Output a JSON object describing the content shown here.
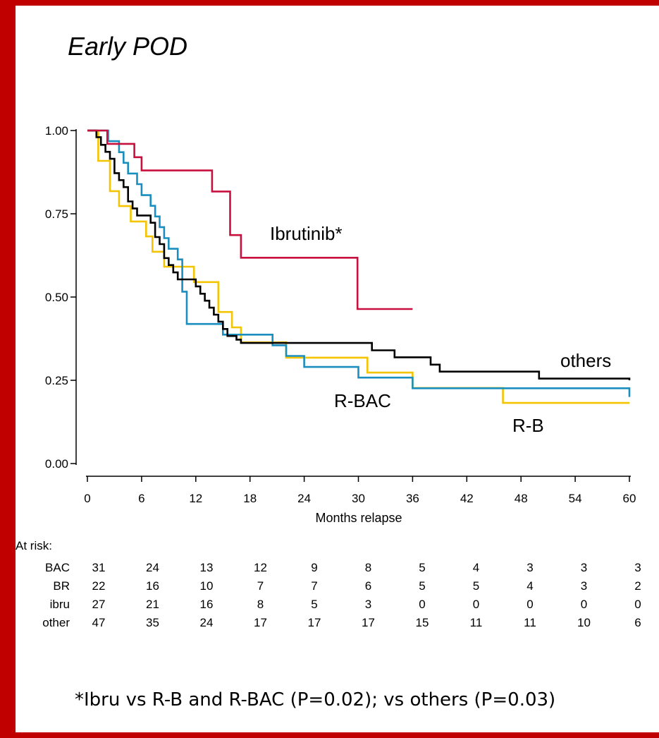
{
  "title": "Early POD",
  "colors": {
    "frame": "#c00000",
    "ibrutinib": "#c8103e",
    "bac": "#1a8fbf",
    "br": "#f5c400",
    "others": "#000000"
  },
  "chart_data": {
    "type": "line",
    "step": true,
    "xlabel": "Months relapse",
    "ylabel": "",
    "xlim": [
      0,
      60
    ],
    "ylim": [
      0,
      1
    ],
    "xticks": [
      0,
      6,
      12,
      18,
      24,
      30,
      36,
      42,
      48,
      54,
      60
    ],
    "xtick_labels": [
      "0",
      "6",
      "12",
      "18",
      "24",
      "30",
      "36",
      "42",
      "48",
      "54",
      "60"
    ],
    "yticks": [
      0,
      0.25,
      0.5,
      0.75,
      1
    ],
    "ytick_labels": [
      "0.00",
      "0.25",
      "0.50",
      "0.75",
      "1.00"
    ],
    "grid": false,
    "series": [
      {
        "name": "Ibrutinib*",
        "color": "#c8103e",
        "x": [
          0,
          2.2,
          5.2,
          6,
          13.8,
          15.8,
          16.2,
          17,
          29.9,
          36
        ],
        "y": [
          1.0,
          0.96,
          0.92,
          0.88,
          0.817,
          0.686,
          0.686,
          0.618,
          0.464,
          0.464
        ]
      },
      {
        "name": "others",
        "color": "#000000",
        "x": [
          0,
          1,
          1.5,
          2,
          2.5,
          3,
          3.5,
          4,
          4.5,
          5,
          5.5,
          7,
          7.5,
          8,
          8.5,
          9,
          9.5,
          10,
          12,
          12.5,
          13,
          13.5,
          14,
          14.5,
          15,
          15.5,
          16,
          16.5,
          17,
          31.5,
          34,
          38,
          39,
          50,
          60
        ],
        "y": [
          1.0,
          0.98,
          0.957,
          0.936,
          0.915,
          0.872,
          0.851,
          0.83,
          0.787,
          0.766,
          0.745,
          0.723,
          0.68,
          0.659,
          0.617,
          0.596,
          0.574,
          0.553,
          0.532,
          0.51,
          0.489,
          0.468,
          0.447,
          0.426,
          0.404,
          0.383,
          0.383,
          0.372,
          0.362,
          0.34,
          0.319,
          0.297,
          0.276,
          0.255,
          0.25
        ]
      },
      {
        "name": "R-BAC",
        "color": "#1a8fbf",
        "x": [
          0,
          2.3,
          3.5,
          4,
          4.5,
          5.5,
          6,
          7,
          7.5,
          8,
          8.5,
          9,
          10,
          10.5,
          11,
          14,
          15,
          16,
          18,
          20.5,
          22,
          24,
          30,
          36,
          60
        ],
        "y": [
          1.0,
          0.968,
          0.935,
          0.903,
          0.871,
          0.839,
          0.806,
          0.774,
          0.742,
          0.71,
          0.677,
          0.645,
          0.613,
          0.516,
          0.419,
          0.419,
          0.387,
          0.387,
          0.387,
          0.355,
          0.323,
          0.29,
          0.258,
          0.226,
          0.2
        ]
      },
      {
        "name": "R-B",
        "color": "#f5c400",
        "x": [
          0,
          1.2,
          2.5,
          3.5,
          4.8,
          6.5,
          7.2,
          8.5,
          11.8,
          14.5,
          16,
          17,
          22,
          29,
          31,
          36,
          46,
          60
        ],
        "y": [
          1.0,
          0.909,
          0.818,
          0.773,
          0.727,
          0.682,
          0.636,
          0.591,
          0.545,
          0.455,
          0.409,
          0.364,
          0.318,
          0.318,
          0.273,
          0.227,
          0.182,
          0.182
        ]
      }
    ],
    "annotations": [
      {
        "text": "Ibrutinib*"
      },
      {
        "text": "others"
      },
      {
        "text": "R-BAC"
      },
      {
        "text": "R-B"
      }
    ]
  },
  "risk_table": {
    "header": "At risk:",
    "rows": [
      {
        "label": "BAC",
        "values": [
          "31",
          "24",
          "13",
          "12",
          "9",
          "8",
          "5",
          "4",
          "3",
          "3",
          "3"
        ]
      },
      {
        "label": "BR",
        "values": [
          "22",
          "16",
          "10",
          "7",
          "7",
          "6",
          "5",
          "5",
          "4",
          "3",
          "2"
        ]
      },
      {
        "label": "ibru",
        "values": [
          "27",
          "21",
          "16",
          "8",
          "5",
          "3",
          "0",
          "0",
          "0",
          "0",
          "0"
        ]
      },
      {
        "label": "other",
        "values": [
          "47",
          "35",
          "24",
          "17",
          "17",
          "17",
          "15",
          "11",
          "11",
          "10",
          "6"
        ]
      }
    ]
  },
  "footnote": "*Ibru vs R-B and R-BAC (P=0.02); vs others (P=0.03)"
}
